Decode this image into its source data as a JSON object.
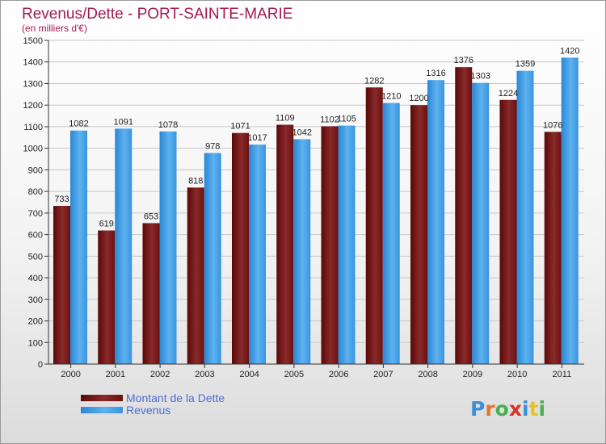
{
  "chart_data": {
    "type": "bar",
    "title": "Revenus/Dette - PORT-SAINTE-MARIE",
    "subtitle": "(en milliers d'€)",
    "categories": [
      "2000",
      "2001",
      "2002",
      "2003",
      "2004",
      "2005",
      "2006",
      "2007",
      "2008",
      "2009",
      "2010",
      "2011"
    ],
    "series": [
      {
        "name": "Montant de la Dette",
        "color": "#7a1414",
        "values": [
          733,
          619,
          653,
          818,
          1071,
          1109,
          1102,
          1282,
          1200,
          1376,
          1224,
          1076
        ]
      },
      {
        "name": "Revenus",
        "color": "#3f9de6",
        "values": [
          1082,
          1091,
          1078,
          978,
          1017,
          1042,
          1105,
          1210,
          1316,
          1303,
          1359,
          1420
        ]
      }
    ],
    "ylim": [
      0,
      1500
    ],
    "yticks": [
      0,
      100,
      200,
      300,
      400,
      500,
      600,
      700,
      800,
      900,
      1000,
      1100,
      1200,
      1300,
      1400,
      1500
    ],
    "grid": true,
    "legend_position": "bottom-left"
  },
  "logo": {
    "text": "Proxiti"
  }
}
